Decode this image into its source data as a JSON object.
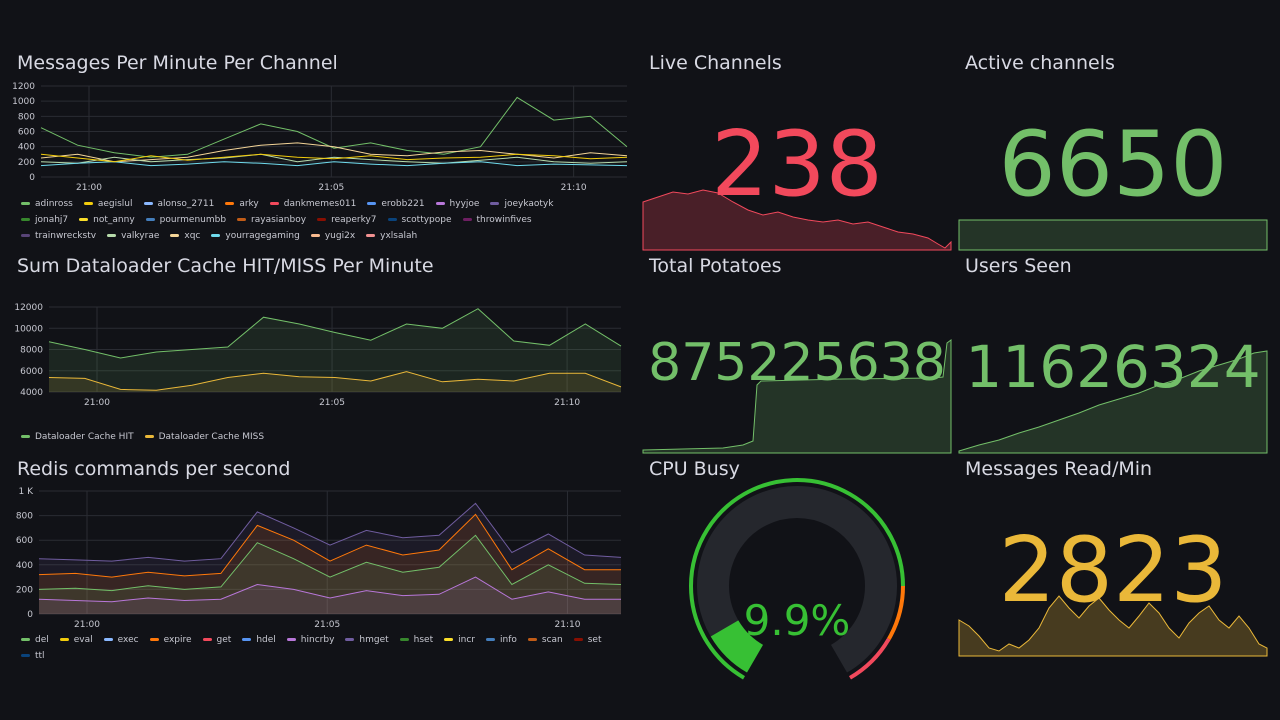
{
  "messages_panel": {
    "title": "Messages Per Minute Per Channel",
    "y_ticks": [
      "1200",
      "1000",
      "800",
      "600",
      "400",
      "200",
      "0"
    ],
    "x_ticks": [
      "21:00",
      "21:05",
      "21:10"
    ],
    "legend": [
      {
        "name": "adinross",
        "color": "#73bf69"
      },
      {
        "name": "aegislul",
        "color": "#f2cc0c"
      },
      {
        "name": "alonso_2711",
        "color": "#8ab8ff"
      },
      {
        "name": "arky",
        "color": "#ff780a"
      },
      {
        "name": "dankmemes011",
        "color": "#f2495c"
      },
      {
        "name": "erobb221",
        "color": "#5794f2"
      },
      {
        "name": "hyyjoe",
        "color": "#b877d9"
      },
      {
        "name": "joeykaotyk",
        "color": "#705da0"
      },
      {
        "name": "jonahj7",
        "color": "#37872d"
      },
      {
        "name": "not_anny",
        "color": "#fade2a"
      },
      {
        "name": "pourmenumbb",
        "color": "#447ebc"
      },
      {
        "name": "rayasianboy",
        "color": "#c15c17"
      },
      {
        "name": "reaperky7",
        "color": "#890f02"
      },
      {
        "name": "scottypope",
        "color": "#0a437c"
      },
      {
        "name": "throwinfives",
        "color": "#6d1f62"
      },
      {
        "name": "trainwreckstv",
        "color": "#584477"
      },
      {
        "name": "valkyrae",
        "color": "#b7dbab"
      },
      {
        "name": "xqc",
        "color": "#f4d598"
      },
      {
        "name": "yourragegaming",
        "color": "#70dbed"
      },
      {
        "name": "yugi2x",
        "color": "#f9ba8f"
      },
      {
        "name": "yxlsalah",
        "color": "#f29191"
      }
    ]
  },
  "cache_panel": {
    "title": "Sum Dataloader Cache HIT/MISS Per Minute",
    "y_ticks": [
      "12000",
      "10000",
      "8000",
      "6000",
      "4000"
    ],
    "x_ticks": [
      "21:00",
      "21:05",
      "21:10"
    ],
    "legend": [
      {
        "name": "Dataloader Cache HIT",
        "color": "#73bf69"
      },
      {
        "name": "Dataloader Cache MISS",
        "color": "#eab839"
      }
    ]
  },
  "redis_panel": {
    "title": "Redis commands per second",
    "y_ticks": [
      "1 K",
      "800",
      "600",
      "400",
      "200",
      "0"
    ],
    "x_ticks": [
      "21:00",
      "21:05",
      "21:10"
    ],
    "legend": [
      {
        "name": "del",
        "color": "#73bf69"
      },
      {
        "name": "eval",
        "color": "#f2cc0c"
      },
      {
        "name": "exec",
        "color": "#8ab8ff"
      },
      {
        "name": "expire",
        "color": "#ff780a"
      },
      {
        "name": "get",
        "color": "#f2495c"
      },
      {
        "name": "hdel",
        "color": "#5794f2"
      },
      {
        "name": "hincrby",
        "color": "#b877d9"
      },
      {
        "name": "hmget",
        "color": "#705da0"
      },
      {
        "name": "hset",
        "color": "#37872d"
      },
      {
        "name": "incr",
        "color": "#fade2a"
      },
      {
        "name": "info",
        "color": "#447ebc"
      },
      {
        "name": "scan",
        "color": "#c15c17"
      },
      {
        "name": "set",
        "color": "#890f02"
      },
      {
        "name": "ttl",
        "color": "#0a437c"
      }
    ]
  },
  "stats": {
    "live_channels": {
      "title": "Live Channels",
      "value": "238",
      "color": "#f2495c"
    },
    "active_channels": {
      "title": "Active channels",
      "value": "6650",
      "color": "#73bf69"
    },
    "total_potatoes": {
      "title": "Total Potatoes",
      "value": "875225638",
      "color": "#73bf69"
    },
    "users_seen": {
      "title": "Users Seen",
      "value": "11626324",
      "color": "#73bf69"
    },
    "cpu_busy": {
      "title": "CPU Busy",
      "value": "9.9%",
      "percent": 9.9,
      "color": "#37c034"
    },
    "messages_read": {
      "title": "Messages Read/Min",
      "value": "2823",
      "color": "#eab839"
    }
  },
  "chart_data": [
    {
      "type": "line",
      "title": "Messages Per Minute Per Channel",
      "x": [
        "20:58",
        "20:59",
        "21:00",
        "21:01",
        "21:02",
        "21:03",
        "21:04",
        "21:05",
        "21:06",
        "21:07",
        "21:08",
        "21:09",
        "21:10",
        "21:11",
        "21:12",
        "21:13",
        "21:14"
      ],
      "ylim": [
        0,
        1200
      ],
      "series": [
        {
          "name": "adinross",
          "values": [
            650,
            420,
            320,
            260,
            300,
            500,
            700,
            600,
            380,
            450,
            350,
            300,
            400,
            1050,
            750,
            800,
            400
          ]
        },
        {
          "name": "xqc",
          "values": [
            250,
            300,
            200,
            230,
            260,
            350,
            420,
            450,
            400,
            300,
            280,
            330,
            350,
            300,
            250,
            320,
            280
          ]
        },
        {
          "name": "valkyrae",
          "values": [
            200,
            180,
            260,
            200,
            230,
            250,
            300,
            200,
            260,
            230,
            200,
            180,
            220,
            260,
            200,
            180,
            200
          ]
        },
        {
          "name": "yourragegaming",
          "values": [
            150,
            180,
            200,
            150,
            170,
            200,
            180,
            150,
            200,
            170,
            150,
            180,
            200,
            150,
            170,
            160,
            150
          ]
        },
        {
          "name": "aegislul",
          "values": [
            300,
            250,
            200,
            280,
            220,
            260,
            300,
            260,
            240,
            280,
            230,
            250,
            260,
            300,
            280,
            240,
            260
          ]
        }
      ]
    },
    {
      "type": "line",
      "title": "Sum Dataloader Cache HIT/MISS Per Minute",
      "x": [
        "20:58",
        "20:59",
        "21:00",
        "21:01",
        "21:02",
        "21:03",
        "21:04",
        "21:05",
        "21:06",
        "21:07",
        "21:08",
        "21:09",
        "21:10",
        "21:11",
        "21:12",
        "21:13",
        "21:14"
      ],
      "ylim": [
        3000,
        13000
      ],
      "series": [
        {
          "name": "Dataloader Cache HIT",
          "values": [
            8900,
            8000,
            7000,
            7700,
            8000,
            8300,
            11800,
            11000,
            10000,
            9100,
            11000,
            10500,
            12800,
            9000,
            8500,
            11000,
            8400
          ]
        },
        {
          "name": "Dataloader Cache MISS",
          "values": [
            4700,
            4600,
            3300,
            3200,
            3800,
            4700,
            5200,
            4800,
            4700,
            4300,
            5400,
            4200,
            4500,
            4300,
            5200,
            5200,
            3600
          ]
        }
      ]
    },
    {
      "type": "area",
      "title": "Redis commands per second",
      "x": [
        "20:58",
        "20:59",
        "21:00",
        "21:01",
        "21:02",
        "21:03",
        "21:04",
        "21:05",
        "21:06",
        "21:07",
        "21:08",
        "21:09",
        "21:10",
        "21:11",
        "21:12",
        "21:13",
        "21:14"
      ],
      "ylim": [
        0,
        1000
      ],
      "series": [
        {
          "name": "hmget",
          "values": [
            450,
            440,
            430,
            460,
            430,
            450,
            830,
            700,
            560,
            680,
            620,
            640,
            900,
            500,
            650,
            480,
            460
          ]
        },
        {
          "name": "expire",
          "values": [
            320,
            330,
            300,
            340,
            310,
            330,
            720,
            600,
            430,
            560,
            480,
            520,
            810,
            360,
            530,
            360,
            360
          ]
        },
        {
          "name": "del",
          "values": [
            200,
            210,
            190,
            230,
            200,
            220,
            580,
            450,
            300,
            420,
            340,
            380,
            640,
            240,
            400,
            250,
            240
          ]
        },
        {
          "name": "hincrby",
          "values": [
            120,
            110,
            100,
            130,
            110,
            120,
            240,
            200,
            130,
            190,
            150,
            160,
            300,
            120,
            180,
            120,
            120
          ]
        }
      ]
    }
  ]
}
